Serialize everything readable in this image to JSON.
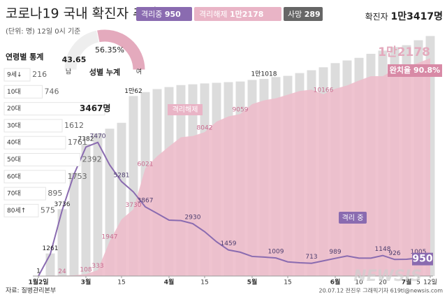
{
  "header": {
    "title": "코로나19 국내 확진자 추이",
    "subtitle": "(단위: 명) 12일 0시 기준",
    "deaths": {
      "name": "사망",
      "value": 289
    }
  },
  "chart_data": [
    {
      "type": "combo",
      "categories": [
        "1월2일",
        null,
        null,
        null,
        "3월",
        null,
        null,
        "15",
        null,
        null,
        null,
        "4월",
        null,
        null,
        "15",
        null,
        null,
        null,
        "5월",
        null,
        null,
        "15",
        null,
        null,
        null,
        "6월",
        null,
        "10",
        null,
        "20",
        null,
        "7월",
        "5",
        "12일"
      ],
      "ylim": [
        0,
        15000
      ],
      "series": [
        {
          "name": "확진자",
          "type": "bar",
          "color": "#dcdcdc",
          "values": [
            1,
            1261,
            3736,
            5766,
            7382,
            7979,
            8236,
            8565,
            10062,
            10284,
            10450,
            10564,
            10674,
            10718,
            10765,
            10801,
            10840,
            10874,
            10962,
            11018,
            11122,
            11190,
            11344,
            11503,
            11668,
            11902,
            12051,
            12198,
            12421,
            12602,
            12800,
            12904,
            13181,
            13417
          ],
          "value_labels": [
            "1",
            "1261",
            "3736",
            null,
            "7382",
            null,
            null,
            null,
            "1만62",
            null,
            null,
            null,
            null,
            null,
            null,
            null,
            null,
            null,
            null,
            "1만1018",
            null,
            null,
            null,
            null,
            null,
            null,
            null,
            null,
            null,
            null,
            null,
            null,
            null,
            "1만3417명"
          ]
        },
        {
          "name": "격리해제",
          "type": "area",
          "color": "#edbccb",
          "values": [
            0,
            22,
            24,
            41,
            108,
            333,
            1947,
            3166,
            3730,
            6021,
            6694,
            7243,
            7757,
            7829,
            8042,
            8635,
            8922,
            9059,
            9610,
            9821,
            9938,
            10135,
            10340,
            10422,
            10166,
            10467,
            10654,
            10930,
            11172,
            11172,
            11537,
            11684,
            11914,
            12178
          ],
          "value_labels": [
            null,
            null,
            "24",
            null,
            "108",
            "333",
            "1947",
            null,
            "3730",
            "6021",
            null,
            null,
            null,
            null,
            "8042",
            null,
            null,
            "9059",
            null,
            null,
            null,
            null,
            null,
            null,
            "10166",
            null,
            null,
            null,
            null,
            null,
            null,
            null,
            null,
            "1만2178"
          ]
        },
        {
          "name": "격리중",
          "type": "line",
          "color": "#8a6bb0",
          "values": [
            1,
            1227,
            3680,
            5688,
            7212,
            7470,
            6214,
            5281,
            4700,
            3867,
            3500,
            3125,
            3100,
            2930,
            2480,
            1915,
            1459,
            1332,
            1096,
            1060,
            1009,
            791,
            740,
            713,
            850,
            989,
            1120,
            1000,
            1000,
            1148,
            926,
            938,
            1005,
            950
          ],
          "value_labels": [
            null,
            null,
            null,
            null,
            null,
            "7470",
            null,
            "5281",
            null,
            "3867",
            null,
            null,
            null,
            "2930",
            null,
            null,
            "1459",
            null,
            null,
            null,
            "1009",
            null,
            null,
            "713",
            null,
            "989",
            null,
            null,
            null,
            "1148",
            "926",
            null,
            "1005",
            "950"
          ]
        }
      ],
      "line_label": "격리 중",
      "recovery": {
        "label": "완치율",
        "value": 90.8,
        "value_label": "90.8%"
      }
    },
    {
      "type": "hbar",
      "title": "연령별 통계",
      "categories": [
        "9세↓",
        "10대",
        "20대",
        "30대",
        "40대",
        "50대",
        "60대",
        "70대",
        "80세↑"
      ],
      "values": [
        216,
        746,
        3467,
        1612,
        1761,
        2392,
        1753,
        895,
        575
      ],
      "value_labels": [
        "216",
        "746",
        "3467명",
        "1612",
        "1761",
        "2392",
        "1753",
        "895",
        "575"
      ],
      "color": "#ffffff"
    },
    {
      "type": "donut",
      "title": "성별 누계",
      "categories": [
        "남",
        "여"
      ],
      "values": [
        43.65,
        56.35
      ],
      "value_labels": [
        "43.65",
        "56.35%"
      ],
      "colors": [
        "#eeeeee",
        "#e4aabd"
      ]
    }
  ],
  "footer": {
    "source": "자료: 질병관리본부",
    "credit": "20.07.12 전진우 그래픽기자 619tl@newsis.com",
    "watermark": "NEWSIS"
  }
}
